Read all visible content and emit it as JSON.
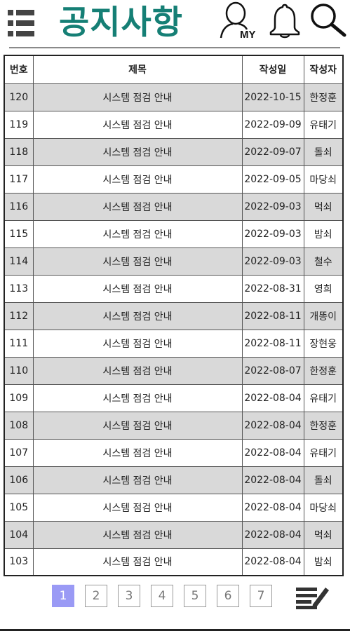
{
  "header": {
    "title": "공지사항",
    "my_icon_text": "MY",
    "title_color": "#157f75"
  },
  "icons": {
    "menu": "menu-list-icon",
    "my": "my-profile-icon",
    "bell": "bell-icon",
    "search": "search-icon",
    "write": "write-edit-icon"
  },
  "table": {
    "headers": {
      "no": "번호",
      "title": "제목",
      "date": "작성일",
      "author": "작성자"
    },
    "rows": [
      {
        "no": "120",
        "title": "시스템 점검 안내",
        "date": "2022-10-15",
        "author": "한정훈"
      },
      {
        "no": "119",
        "title": "시스템 점검 안내",
        "date": "2022-09-09",
        "author": "유태기"
      },
      {
        "no": "118",
        "title": "시스템 점검 안내",
        "date": "2022-09-07",
        "author": "돌쇠"
      },
      {
        "no": "117",
        "title": "시스템 점검 안내",
        "date": "2022-09-05",
        "author": "마당쇠"
      },
      {
        "no": "116",
        "title": "시스템 점검 안내",
        "date": "2022-09-03",
        "author": "먹쇠"
      },
      {
        "no": "115",
        "title": "시스템 점검 안내",
        "date": "2022-09-03",
        "author": "밤쇠"
      },
      {
        "no": "114",
        "title": "시스템 점검 안내",
        "date": "2022-09-03",
        "author": "철수"
      },
      {
        "no": "113",
        "title": "시스템 점검 안내",
        "date": "2022-08-31",
        "author": "영희"
      },
      {
        "no": "112",
        "title": "시스템 점검 안내",
        "date": "2022-08-11",
        "author": "개똥이"
      },
      {
        "no": "111",
        "title": "시스템 점검 안내",
        "date": "2022-08-11",
        "author": "장현웅"
      },
      {
        "no": "110",
        "title": "시스템 점검 안내",
        "date": "2022-08-07",
        "author": "한정훈"
      },
      {
        "no": "109",
        "title": "시스템 점검 안내",
        "date": "2022-08-04",
        "author": "유태기"
      },
      {
        "no": "108",
        "title": "시스템 점검 안내",
        "date": "2022-08-04",
        "author": "한정훈"
      },
      {
        "no": "107",
        "title": "시스템 점검 안내",
        "date": "2022-08-04",
        "author": "유태기"
      },
      {
        "no": "106",
        "title": "시스템 점검 안내",
        "date": "2022-08-04",
        "author": "돌쇠"
      },
      {
        "no": "105",
        "title": "시스템 점검 안내",
        "date": "2022-08-04",
        "author": "마당쇠"
      },
      {
        "no": "104",
        "title": "시스템 점검 안내",
        "date": "2022-08-04",
        "author": "먹쇠"
      },
      {
        "no": "103",
        "title": "시스템 점검 안내",
        "date": "2022-08-04",
        "author": "밤쇠"
      }
    ]
  },
  "pagination": {
    "pages": [
      "1",
      "2",
      "3",
      "4",
      "5",
      "6",
      "7"
    ],
    "current": "1",
    "active_color": "#9a9af5"
  }
}
